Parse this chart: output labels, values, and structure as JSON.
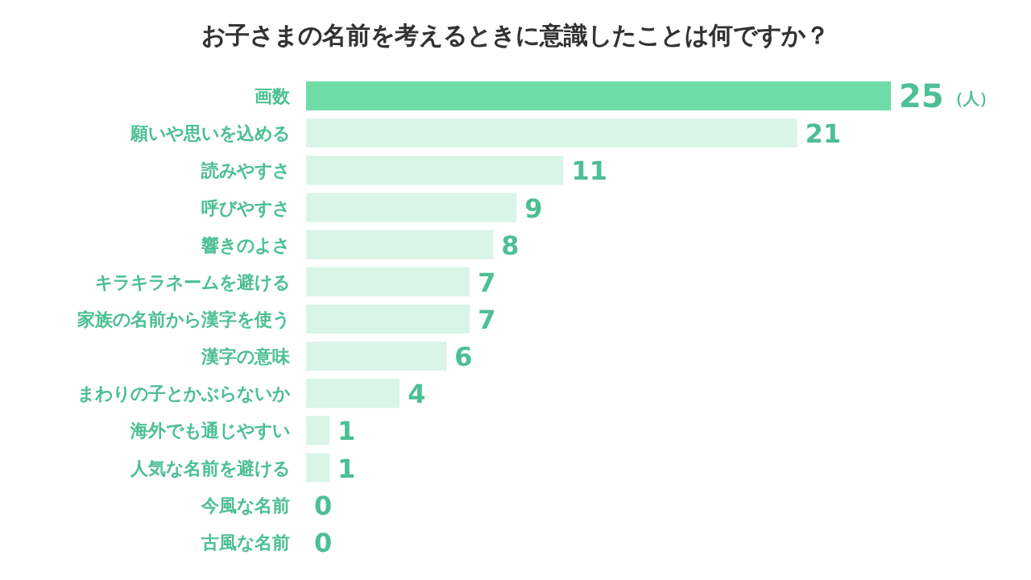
{
  "chart_data": {
    "type": "bar",
    "orientation": "horizontal",
    "title": "お子さまの名前を考えるときに意識したことは何ですか？",
    "categories": [
      "画数",
      "願いや思いを込める",
      "読みやすさ",
      "呼びやすさ",
      "響きのよさ",
      "キラキラネームを避ける",
      "家族の名前から漢字を使う",
      "漢字の意味",
      "まわりの子とかぶらないか",
      "海外でも通じやすい",
      "人気な名前を避ける",
      "今風な名前",
      "古風な名前"
    ],
    "values": [
      25,
      21,
      11,
      9,
      8,
      7,
      7,
      6,
      4,
      1,
      1,
      0,
      0
    ],
    "colors": [
      "#6fdca8",
      "#d8f5e7",
      "#d8f5e7",
      "#d8f5e7",
      "#d8f5e7",
      "#d8f5e7",
      "#d8f5e7",
      "#d8f5e7",
      "#d8f5e7",
      "#d8f5e7",
      "#d8f5e7",
      "#d8f5e7",
      "#d8f5e7"
    ],
    "data_labels": true,
    "annotations": [
      "（人）"
    ]
  }
}
